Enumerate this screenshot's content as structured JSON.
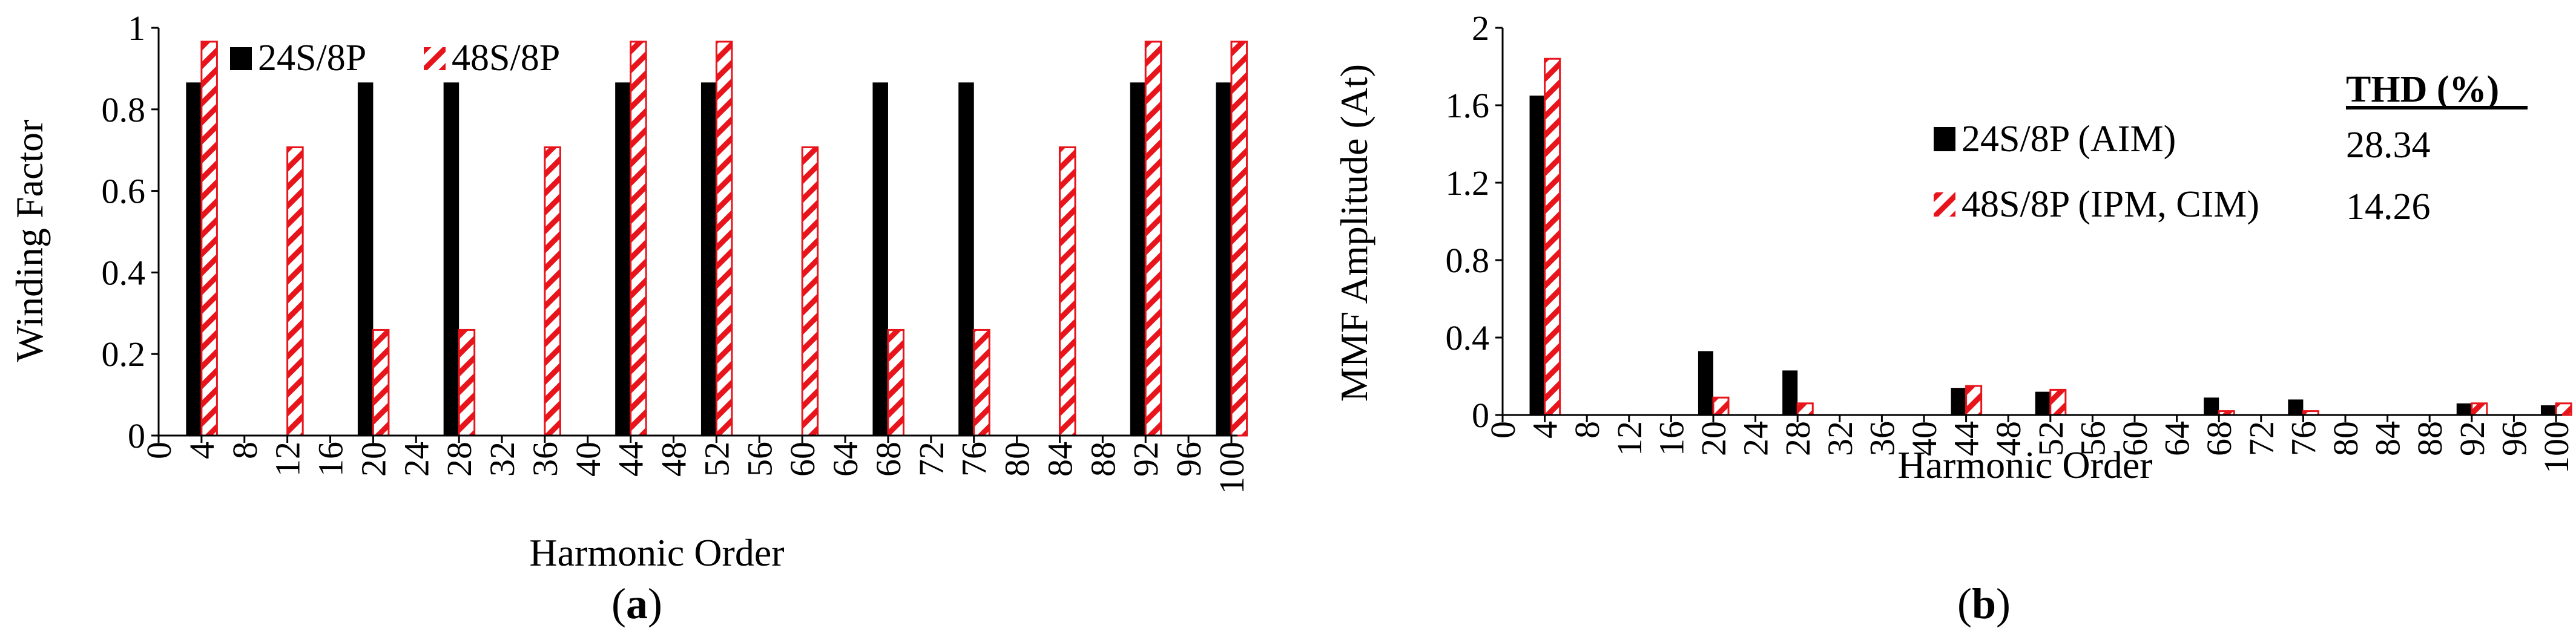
{
  "colors": {
    "series1": "#000000",
    "series2_stripe": "#e8141b",
    "series2_fill": "#ffffff"
  },
  "chart_data": [
    {
      "type": "bar",
      "caption": "(a)",
      "xlabel": "Harmonic Order",
      "ylabel": "Winding Factor",
      "ylim": [
        0,
        1
      ],
      "yticks": [
        "0",
        "0.2",
        "0.4",
        "0.6",
        "0.8",
        "1"
      ],
      "xticks": [
        "0",
        "4",
        "8",
        "12",
        "16",
        "20",
        "24",
        "28",
        "32",
        "36",
        "40",
        "44",
        "48",
        "52",
        "56",
        "60",
        "64",
        "68",
        "72",
        "76",
        "80",
        "84",
        "88",
        "92",
        "96",
        "100"
      ],
      "legend_placement": "top-left",
      "series": [
        {
          "name": "24S/8P",
          "style": "solid",
          "points": [
            [
              4,
              0.866
            ],
            [
              20,
              0.866
            ],
            [
              28,
              0.866
            ],
            [
              44,
              0.866
            ],
            [
              52,
              0.866
            ],
            [
              68,
              0.866
            ],
            [
              76,
              0.866
            ],
            [
              92,
              0.866
            ],
            [
              100,
              0.866
            ]
          ]
        },
        {
          "name": "48S/8P",
          "style": "hatched",
          "points": [
            [
              4,
              0.966
            ],
            [
              12,
              0.707
            ],
            [
              20,
              0.259
            ],
            [
              28,
              0.259
            ],
            [
              36,
              0.707
            ],
            [
              44,
              0.966
            ],
            [
              52,
              0.966
            ],
            [
              60,
              0.707
            ],
            [
              68,
              0.259
            ],
            [
              76,
              0.259
            ],
            [
              84,
              0.707
            ],
            [
              92,
              0.966
            ],
            [
              100,
              0.966
            ]
          ]
        }
      ]
    },
    {
      "type": "bar",
      "caption": "(b)",
      "xlabel": "Harmonic Order",
      "ylabel": "MMF Amplitude (At)",
      "ylim": [
        0,
        2
      ],
      "yticks": [
        "0",
        "0.4",
        "0.8",
        "1.2",
        "1.6",
        "2"
      ],
      "xticks": [
        "0",
        "4",
        "8",
        "12",
        "16",
        "20",
        "24",
        "28",
        "32",
        "36",
        "40",
        "44",
        "48",
        "52",
        "56",
        "60",
        "64",
        "68",
        "72",
        "76",
        "80",
        "84",
        "88",
        "92",
        "96",
        "100"
      ],
      "legend_placement": "top-right",
      "thd_header": "THD (%)",
      "series": [
        {
          "name": "24S/8P (AIM)",
          "thd": "28.34",
          "style": "solid",
          "points": [
            [
              4,
              1.65
            ],
            [
              20,
              0.33
            ],
            [
              28,
              0.23
            ],
            [
              44,
              0.14
            ],
            [
              52,
              0.12
            ],
            [
              68,
              0.09
            ],
            [
              76,
              0.08
            ],
            [
              92,
              0.06
            ],
            [
              100,
              0.05
            ]
          ]
        },
        {
          "name": "48S/8P (IPM, CIM)",
          "thd": "14.26",
          "style": "hatched",
          "points": [
            [
              4,
              1.84
            ],
            [
              20,
              0.09
            ],
            [
              28,
              0.06
            ],
            [
              44,
              0.15
            ],
            [
              52,
              0.13
            ],
            [
              68,
              0.02
            ],
            [
              76,
              0.02
            ],
            [
              92,
              0.06
            ],
            [
              100,
              0.06
            ]
          ]
        }
      ]
    }
  ]
}
